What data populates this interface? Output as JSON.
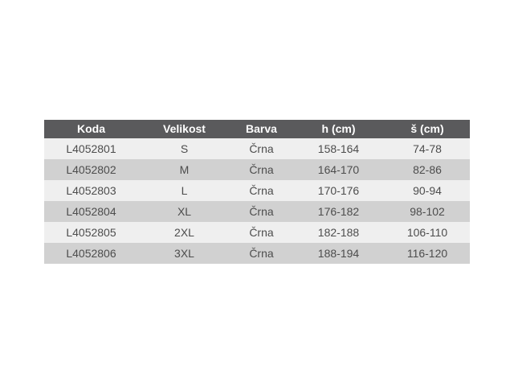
{
  "colors": {
    "page_background": "#ffffff",
    "header_background": "#5a5a5c",
    "header_text": "#ffffff",
    "row_odd_background": "#efefef",
    "row_even_background": "#d1d1d1",
    "body_text": "#4d4d4d"
  },
  "table": {
    "headers": [
      "Koda",
      "Velikost",
      "Barva",
      "h (cm)",
      "š (cm)"
    ],
    "rows": [
      {
        "koda": "L4052801",
        "velikost": "S",
        "barva": "Črna",
        "h": "158-164",
        "s": "74-78"
      },
      {
        "koda": "L4052802",
        "velikost": "M",
        "barva": "Črna",
        "h": "164-170",
        "s": "82-86"
      },
      {
        "koda": "L4052803",
        "velikost": "L",
        "barva": "Črna",
        "h": "170-176",
        "s": "90-94"
      },
      {
        "koda": "L4052804",
        "velikost": "XL",
        "barva": "Črna",
        "h": "176-182",
        "s": "98-102"
      },
      {
        "koda": "L4052805",
        "velikost": "2XL",
        "barva": "Črna",
        "h": "182-188",
        "s": "106-110"
      },
      {
        "koda": "L4052806",
        "velikost": "3XL",
        "barva": "Črna",
        "h": "188-194",
        "s": "116-120"
      }
    ]
  },
  "chart_data": {
    "type": "table",
    "title": "",
    "columns": [
      "Koda",
      "Velikost",
      "Barva",
      "h (cm)",
      "š (cm)"
    ],
    "rows": [
      [
        "L4052801",
        "S",
        "Črna",
        "158-164",
        "74-78"
      ],
      [
        "L4052802",
        "M",
        "Črna",
        "164-170",
        "82-86"
      ],
      [
        "L4052803",
        "L",
        "Črna",
        "170-176",
        "90-94"
      ],
      [
        "L4052804",
        "XL",
        "Črna",
        "176-182",
        "98-102"
      ],
      [
        "L4052805",
        "2XL",
        "Črna",
        "182-188",
        "106-110"
      ],
      [
        "L4052806",
        "3XL",
        "Črna",
        "188-194",
        "116-120"
      ]
    ]
  }
}
